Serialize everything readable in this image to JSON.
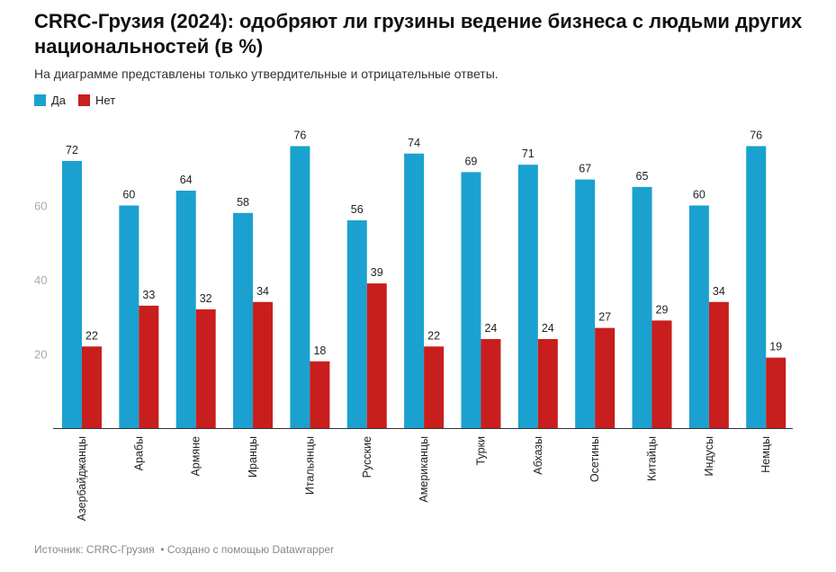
{
  "chart_data": {
    "type": "bar",
    "title": "CRRC-Грузия (2024): одобряют ли грузины ведение бизнеса с людьми других национальностей (в %)",
    "subtitle": "На диаграмме представлены только утвердительные и отрицательные ответы.",
    "categories": [
      "Азербайджанцы",
      "Арабы",
      "Армяне",
      "Иранцы",
      "Итальянцы",
      "Русские",
      "Американцы",
      "Турки",
      "Абхазы",
      "Осетины",
      "Китайцы",
      "Индусы",
      "Немцы"
    ],
    "series": [
      {
        "name": "Да",
        "color": "#1ba1cf",
        "values": [
          72,
          60,
          64,
          58,
          76,
          56,
          74,
          69,
          71,
          67,
          65,
          60,
          76
        ]
      },
      {
        "name": "Нет",
        "color": "#c91e1e",
        "values": [
          22,
          33,
          32,
          34,
          18,
          39,
          22,
          24,
          24,
          27,
          29,
          34,
          19
        ]
      }
    ],
    "yticks": [
      20,
      40,
      60
    ],
    "ylim": [
      0,
      80
    ],
    "xlabel": "",
    "ylabel": "",
    "legend": "top-left",
    "grid": false
  },
  "footer": {
    "source": "Источник: CRRC-Грузия",
    "credit": "• Создано с помощью Datawrapper"
  }
}
